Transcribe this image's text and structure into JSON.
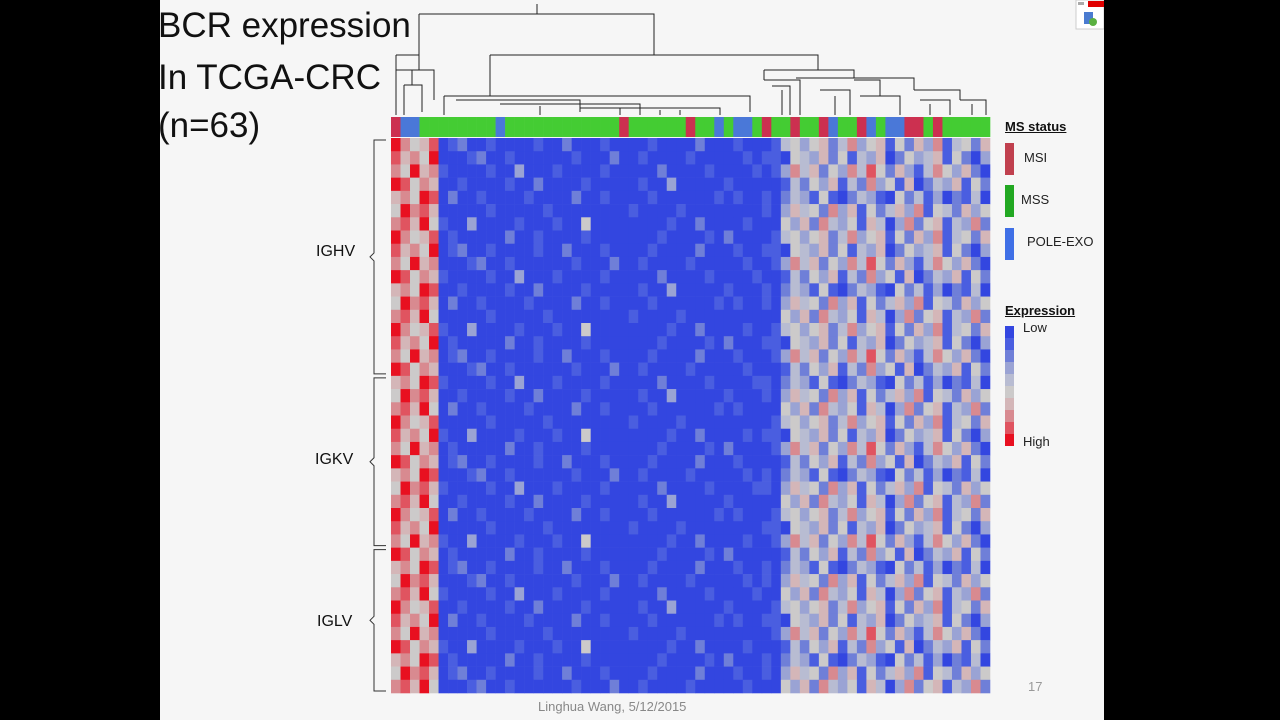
{
  "slide": {
    "title_lines": [
      "BCR expression",
      "In TCGA-CRC",
      "(n=63)"
    ],
    "footer": "Linghua Wang, 5/12/2015",
    "page_number": "17",
    "corner_icon": "presentation-window-icon"
  },
  "chart_data": {
    "type": "heatmap",
    "title": "",
    "n_samples": 63,
    "row_groups": [
      {
        "label": "IGHV",
        "rows": 18
      },
      {
        "label": "IGKV",
        "rows": 13
      },
      {
        "label": "IGLV",
        "rows": 11
      }
    ],
    "column_annotation": {
      "title": "MS status",
      "categories": [
        {
          "code": "I",
          "label": "MSI",
          "color": "#c0404e"
        },
        {
          "code": "S",
          "label": "MSS",
          "color": "#22a822"
        },
        {
          "code": "P",
          "label": "POLE-EXO",
          "color": "#3f6fe6"
        }
      ],
      "bar_colors": {
        "I": "#cc3050",
        "S": "#44cc33",
        "P": "#4a78d8"
      },
      "values": "IPPSSSSSSSSPSSSSSSSSSSSSISSSSSSISSPSPPSISSISSIPSSIPSPPIISISSSSS"
    },
    "color_scale": {
      "title": "Expression",
      "low_label": "Low",
      "high_label": "High",
      "levels": 10,
      "colors": [
        "#3346e0",
        "#4a5ee0",
        "#6f7fd8",
        "#9aa3d4",
        "#b8bcd2",
        "#cccaca",
        "#d4b6b8",
        "#d88a90",
        "#e05460",
        "#e81020"
      ]
    },
    "matrix": [
      "975680120010000100200010000100002000100014535624735615263714526",
      "867590001200100000010002001000010000010110543625143602534615203",
      "759671000010030001000010000020000100001013746253748526314753620",
      "985760010000100200001000001003000001000001425361427351602436152",
      "675980200100001000020010000100000010100102431510243105241302140",
      "597860000010000010000000010000100000000103645273615246371542635",
      "786951003000010001005000000001002000010005362743516403725614372",
      "975680100000200100001000000010000102000014535624735615263714526",
      "867590120010000100200010000100002000100110543625143602534615203",
      "759670001200100000010002001000010000010013746253748526314753620",
      "985761000010030001000010000020000100001001425361427351602436152",
      "675980010000100200001000001003000001000102431510243105241302140",
      "597860200100001000020010000100000010100103645273615246371542635",
      "786950000010000010000000010000100000000005362743516403725614372",
      "975681003000010001005000000001002000010014535624735615263714526",
      "867590100000200100001000000010000102000110543625143602534615203",
      "759670120010000100200010000100002000100013746253748526314753620",
      "985760001200100000010002001000010000010001425361427351602436152",
      "675981000010030001000010000020000100001102431510243105241302140",
      "597860010000100200001000001003000001000103645273615246371542635",
      "786950200100001000020010000100000010100005362743516403725614372",
      "975680000010000010000000010000100000000014535624735615263714526",
      "867591003000010001005000000001002000010110543625143602534615203",
      "759670100000200100001000000010000102000013746253748526314753620",
      "985760120010000100200010000100002000100001425361427351602436152",
      "675980001200100000010002001000010000010102431510243105241302140",
      "597861000010030001000010000020000100001103645273615246371542635",
      "786950010000100200001000001003000001000005362743516403725614372",
      "975680200100001000020010000100000010100014535624735615263714526",
      "867590000010000010000000010000100000000110543625143602534615203",
      "759671003000010001005000000001002000010013746253748526314753620",
      "985760100000200100001000000010000102000001425361427351602436152",
      "675980120010000100200010000100002000100102431510243105241302140",
      "597860001200100000010002001000010000010103645273615246371542635",
      "786951000010030001000010000020000100001005362743516403725614372",
      "975680010000100200001000001003000001000014535624735615263714526",
      "867590200100001000020010000100000010100110543625143602534615203",
      "759670000010000010000000010000100000000013746253748526314753620",
      "985761003000010001005000000001002000010001425361427351602436152",
      "675980100000200100001000000010000102000102431510243105241302140",
      "597860120010000100200010000100002000100103645273615246371542635",
      "786950001200100000010002001000010000010005362743516403725614372"
    ]
  }
}
